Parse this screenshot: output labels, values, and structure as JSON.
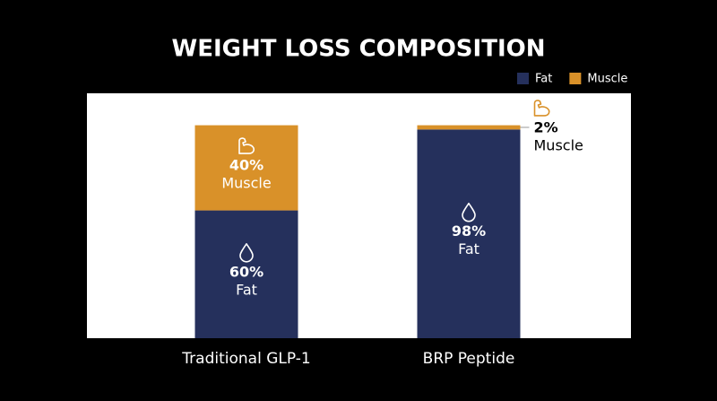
{
  "chart_data": {
    "type": "stacked-bar",
    "title": "WEIGHT LOSS COMPOSITION",
    "categories": [
      "Traditional GLP-1",
      "BRP Peptide"
    ],
    "series": [
      {
        "name": "Fat",
        "color": "#25305c",
        "values": [
          60,
          98
        ],
        "value_labels": [
          "60%",
          "98%"
        ]
      },
      {
        "name": "Muscle",
        "color": "#d99129",
        "values": [
          40,
          2
        ],
        "value_labels": [
          "40%",
          "2%"
        ]
      }
    ],
    "ylim": [
      0,
      115
    ],
    "legend": "top-right"
  }
}
